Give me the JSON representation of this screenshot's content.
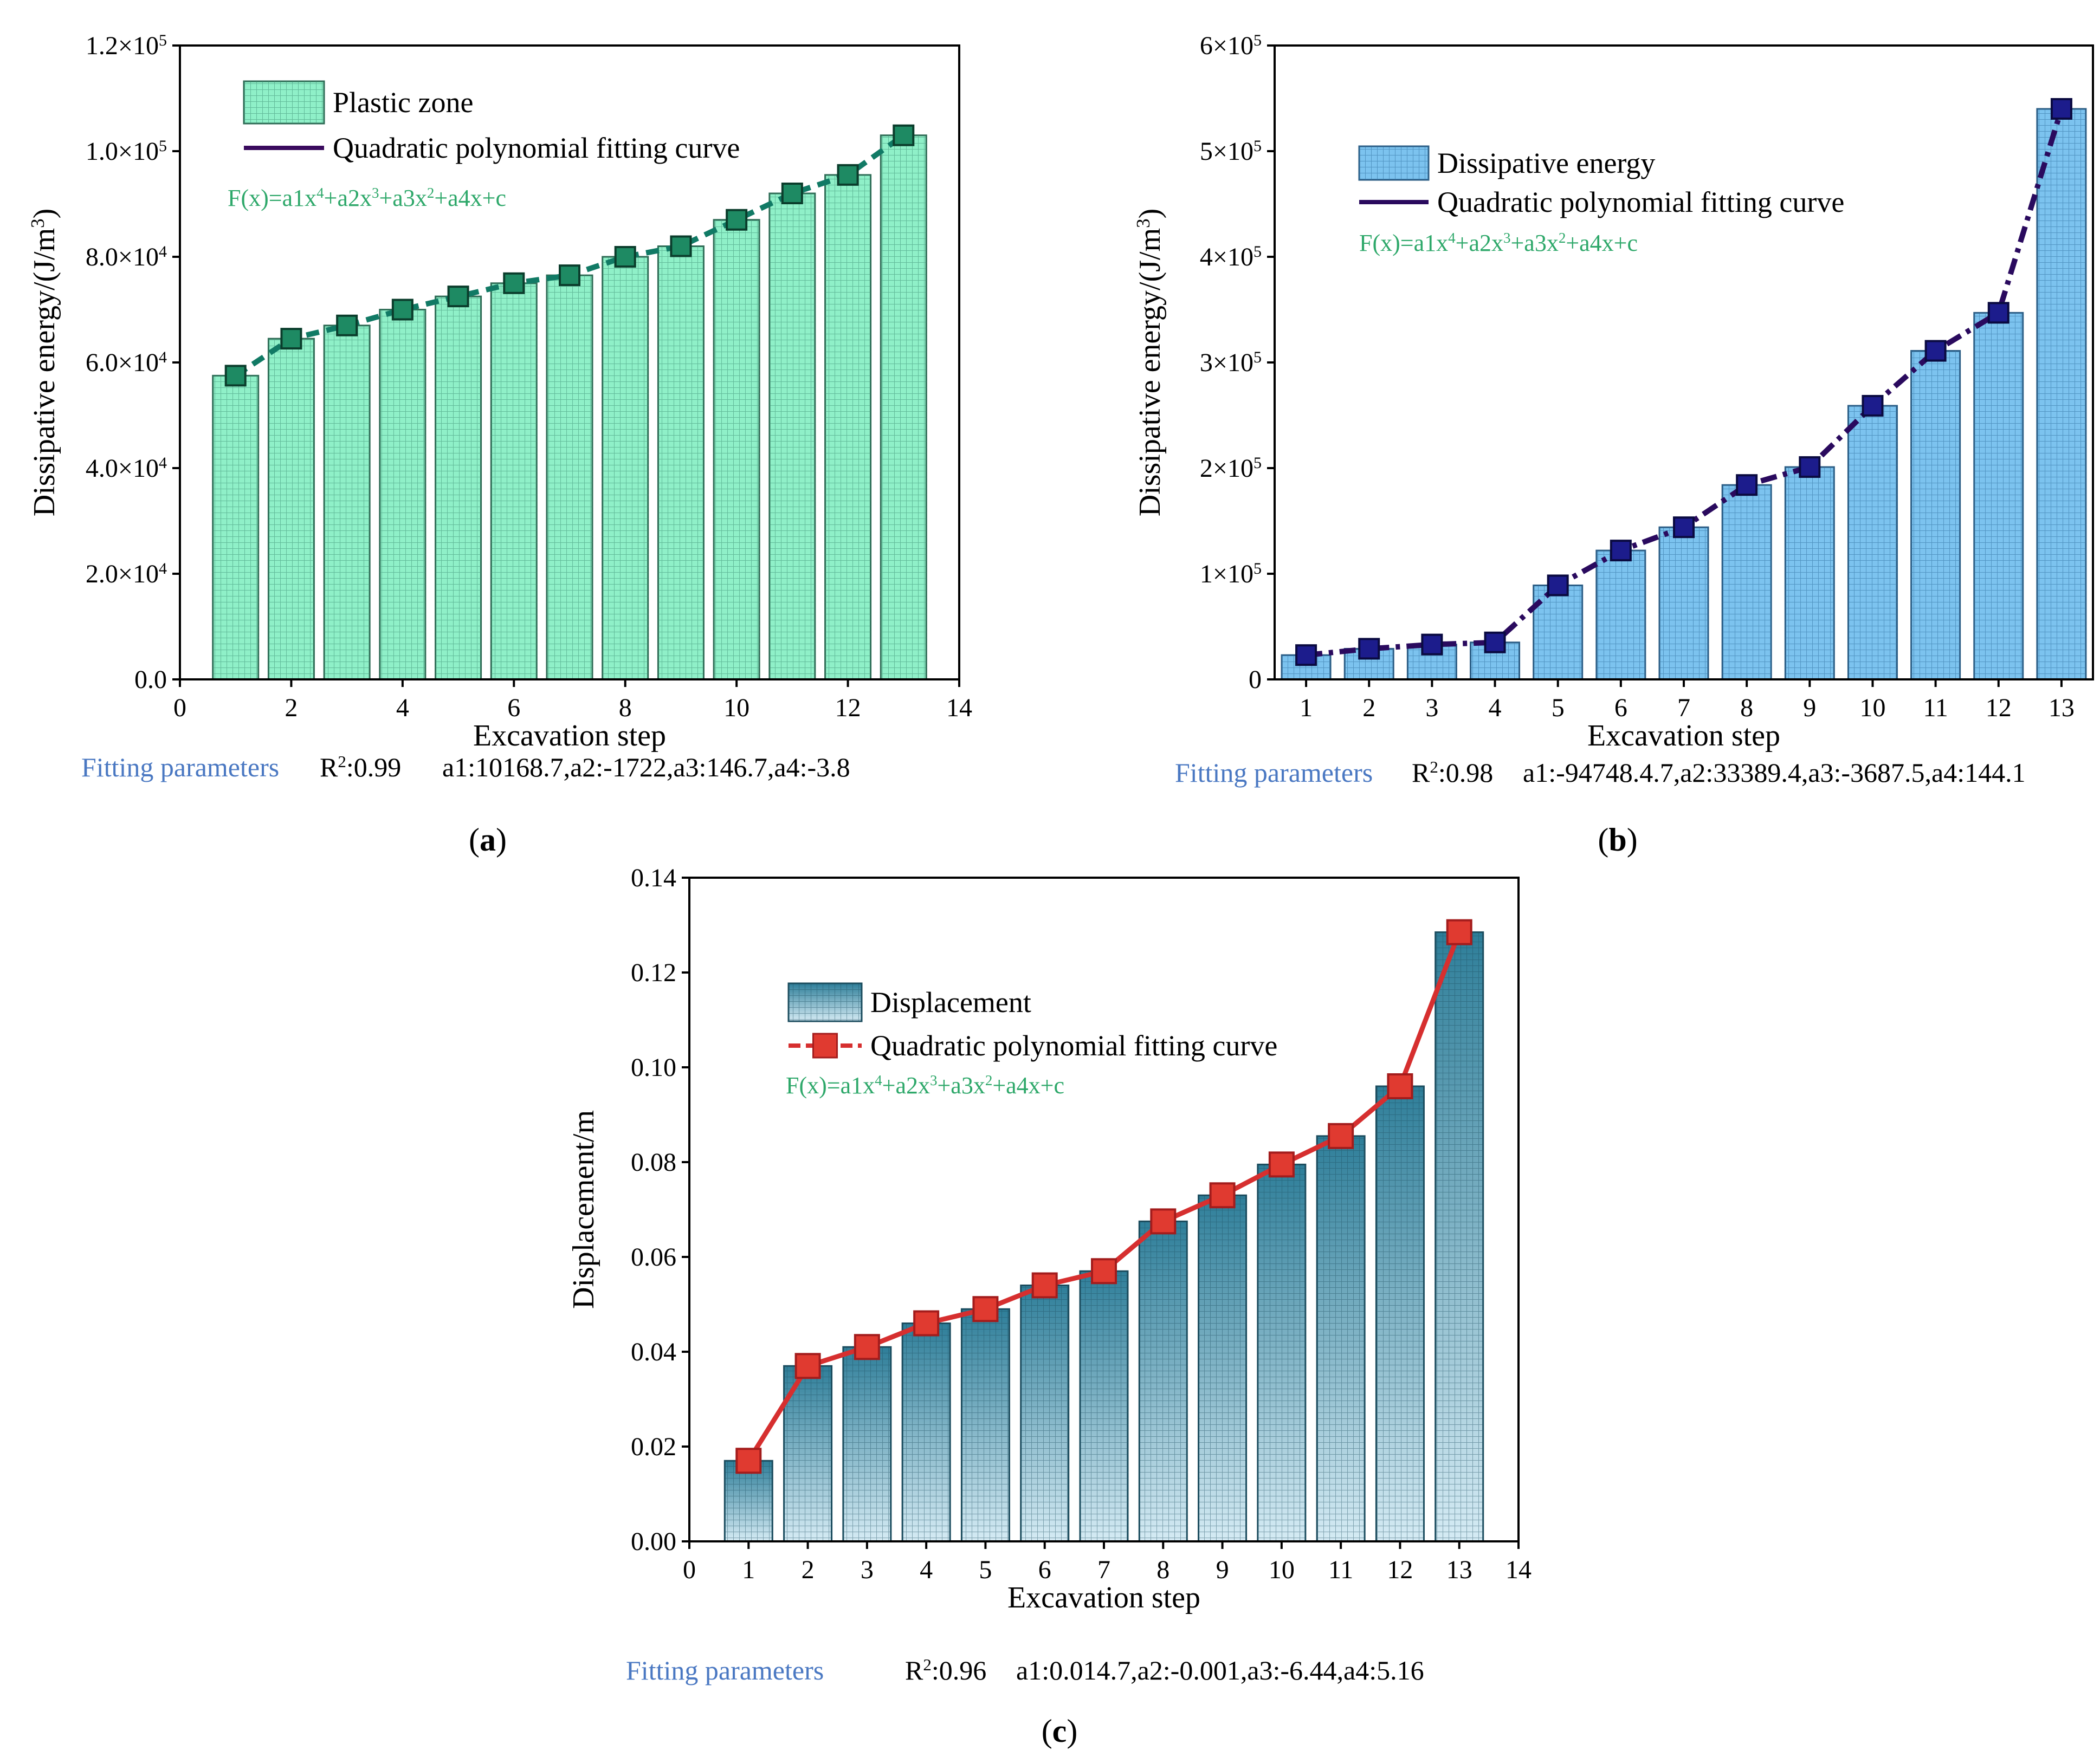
{
  "figure": {
    "captions": [
      "(a)",
      "(b)",
      "(c)"
    ]
  },
  "colors": {
    "a_bar": "#8ff0c8",
    "a_bar_stroke": "#2e6b55",
    "a_line": "#117a65",
    "a_marker": "#1e8a63",
    "a_marker_stroke": "#0b3d2c",
    "b_bar": "#7cc3ef",
    "b_bar_stroke": "#2b5d85",
    "b_line": "#2a0a5e",
    "b_marker": "#1c1c8c",
    "b_marker_stroke": "#0a0a40",
    "c_bar_top": "#2e7e99",
    "c_bar_bottom": "#cfe6f1",
    "c_bar_stroke": "#1b4c5e",
    "c_line": "#d62f2f",
    "c_marker": "#e03a30",
    "formula": "#2ea86a",
    "fit_label": "#4a78c2"
  },
  "chart_data": [
    {
      "id": "a",
      "type": "bar",
      "caption": "(a)",
      "xlabel": "Excavation step",
      "ylabel": "Dissipative energy/(J/m³)",
      "xlim": [
        0,
        14
      ],
      "ylim": [
        0,
        120000
      ],
      "x_ticks": [
        0,
        2,
        4,
        6,
        8,
        10,
        12,
        14
      ],
      "y_ticks": [
        0,
        20000,
        40000,
        60000,
        80000,
        100000,
        120000
      ],
      "y_tick_labels": [
        "0.0",
        "2.0×10⁴",
        "4.0×10⁴",
        "6.0×10⁴",
        "8.0×10⁴",
        "1.0×10⁵",
        "1.2×10⁵"
      ],
      "x": [
        1,
        2,
        3,
        4,
        5,
        6,
        7,
        8,
        9,
        10,
        11,
        12,
        13
      ],
      "series": [
        {
          "name": "Plastic zone",
          "kind": "bar",
          "values": [
            57500,
            64500,
            67000,
            70000,
            72500,
            75000,
            76500,
            80000,
            82000,
            87000,
            92000,
            95500,
            103000
          ]
        },
        {
          "name": "Quadratic polynomial fitting curve",
          "kind": "line",
          "values": [
            57500,
            64500,
            67000,
            70000,
            72500,
            75000,
            76500,
            80000,
            82000,
            87000,
            92000,
            95500,
            103000
          ]
        }
      ],
      "formula": "F(x)=a1x⁴+a2x³+a3x²+a4x+c",
      "fitting_label": "Fitting parameters",
      "r2": "R²:0.99",
      "params": "a1:10168.7,a2:-1722,a3:146.7,a4:-3.8"
    },
    {
      "id": "b",
      "type": "bar",
      "caption": "(b)",
      "xlabel": "Excavation step",
      "ylabel": "Dissipative energy/(J/m³)",
      "xlim": [
        0.5,
        13.5
      ],
      "ylim": [
        0,
        600000
      ],
      "x_ticks": [
        1,
        2,
        3,
        4,
        5,
        6,
        7,
        8,
        9,
        10,
        11,
        12,
        13
      ],
      "y_ticks": [
        0,
        100000,
        200000,
        300000,
        400000,
        500000,
        600000
      ],
      "y_tick_labels": [
        "0",
        "1×10⁵",
        "2×10⁵",
        "3×10⁵",
        "4×10⁵",
        "5×10⁵",
        "6×10⁵"
      ],
      "x": [
        1,
        2,
        3,
        4,
        5,
        6,
        7,
        8,
        9,
        10,
        11,
        12,
        13
      ],
      "series": [
        {
          "name": "Dissipative energy",
          "kind": "bar",
          "values": [
            23000,
            29000,
            33000,
            35000,
            89000,
            122000,
            144000,
            184000,
            201000,
            259000,
            311000,
            347000,
            540000
          ]
        },
        {
          "name": "Quadratic polynomial fitting curve",
          "kind": "line",
          "values": [
            23000,
            29000,
            33000,
            35000,
            89000,
            122000,
            144000,
            184000,
            201000,
            259000,
            311000,
            347000,
            540000
          ]
        }
      ],
      "formula": "F(x)=a1x⁴+a2x³+a3x²+a4x+c",
      "fitting_label": "Fitting parameters",
      "r2": "R²:0.98",
      "params": "a1:-94748.4.7,a2:33389.4,a3:-3687.5,a4:144.1"
    },
    {
      "id": "c",
      "type": "bar",
      "caption": "(c)",
      "xlabel": "Excavation step",
      "ylabel": "Displacement/m",
      "xlim": [
        0,
        14
      ],
      "ylim": [
        0,
        0.14
      ],
      "x_ticks": [
        0,
        1,
        2,
        3,
        4,
        5,
        6,
        7,
        8,
        9,
        10,
        11,
        12,
        13,
        14
      ],
      "y_ticks": [
        0,
        0.02,
        0.04,
        0.06,
        0.08,
        0.1,
        0.12,
        0.14
      ],
      "y_tick_labels": [
        "0.00",
        "0.02",
        "0.04",
        "0.06",
        "0.08",
        "0.10",
        "0.12",
        "0.14"
      ],
      "x": [
        1,
        2,
        3,
        4,
        5,
        6,
        7,
        8,
        9,
        10,
        11,
        12,
        13
      ],
      "series": [
        {
          "name": "Displacement",
          "kind": "bar",
          "values": [
            0.017,
            0.037,
            0.041,
            0.046,
            0.049,
            0.054,
            0.057,
            0.0675,
            0.073,
            0.0795,
            0.0855,
            0.096,
            0.1285
          ]
        },
        {
          "name": "Quadratic polynomial fitting curve",
          "kind": "line",
          "values": [
            0.017,
            0.037,
            0.041,
            0.046,
            0.049,
            0.054,
            0.057,
            0.0675,
            0.073,
            0.0795,
            0.0855,
            0.096,
            0.1285
          ]
        }
      ],
      "formula": "F(x)=a1x⁴+a2x³+a3x²+a4x+c",
      "fitting_label": "Fitting parameters",
      "r2": "R²:0.96",
      "params": "a1:0.014.7,a2:-0.001,a3:-6.44,a4:5.16"
    }
  ]
}
